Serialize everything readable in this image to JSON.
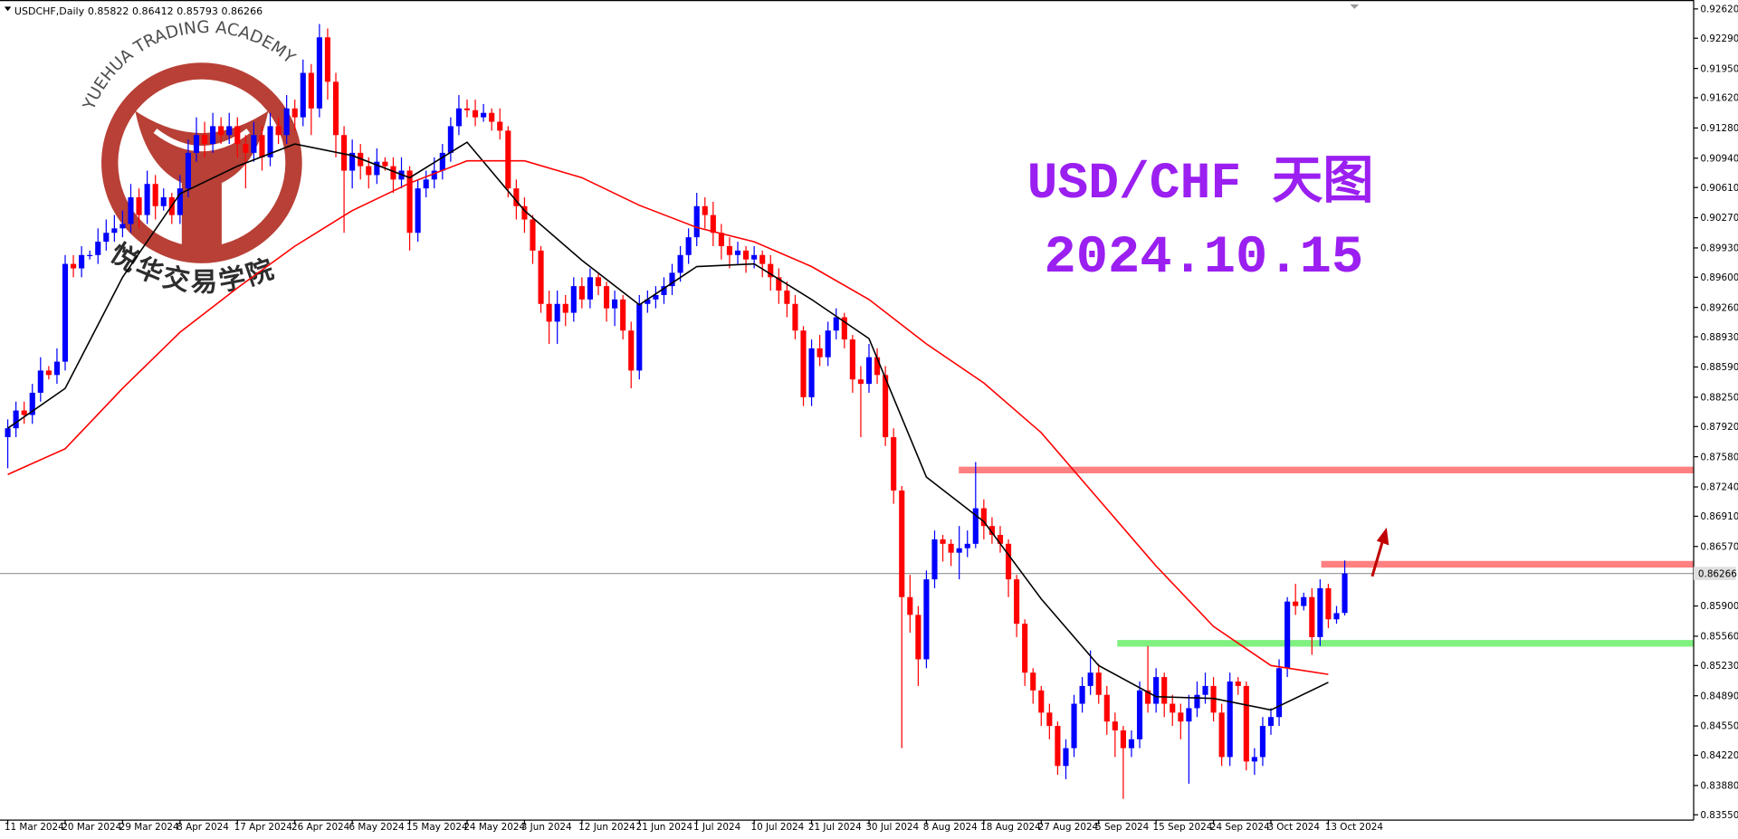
{
  "chart_data": {
    "type": "candlestick",
    "symbol": "USDCHF,Daily",
    "title": "USD/CHF 天图",
    "subtitle": "2024.10.15",
    "watermark": {
      "en": "YUEHUA TRADING ACADEMY",
      "cn": "悦华交易学院"
    },
    "up_color": "#0000ff",
    "down_color": "#ff0000",
    "price_line_color": "#a0a0a0",
    "ylim": [
      0.8349,
      0.9272
    ],
    "yticks": [
      {
        "value": 0.9262,
        "label": "0.92620"
      },
      {
        "value": 0.9229,
        "label": "0.92290"
      },
      {
        "value": 0.9195,
        "label": "0.91950"
      },
      {
        "value": 0.9162,
        "label": "0.91620"
      },
      {
        "value": 0.9128,
        "label": "0.91280"
      },
      {
        "value": 0.9094,
        "label": "0.90940"
      },
      {
        "value": 0.9061,
        "label": "0.90610"
      },
      {
        "value": 0.9027,
        "label": "0.90270"
      },
      {
        "value": 0.8993,
        "label": "0.89930"
      },
      {
        "value": 0.896,
        "label": "0.89600"
      },
      {
        "value": 0.8926,
        "label": "0.89260"
      },
      {
        "value": 0.8893,
        "label": "0.88930"
      },
      {
        "value": 0.8859,
        "label": "0.88590"
      },
      {
        "value": 0.8825,
        "label": "0.88250"
      },
      {
        "value": 0.8792,
        "label": "0.87920"
      },
      {
        "value": 0.8758,
        "label": "0.87580"
      },
      {
        "value": 0.8724,
        "label": "0.87240"
      },
      {
        "value": 0.8691,
        "label": "0.86910"
      },
      {
        "value": 0.8657,
        "label": "0.86570"
      },
      {
        "value": 0.859,
        "label": "0.85900"
      },
      {
        "value": 0.8556,
        "label": "0.85560"
      },
      {
        "value": 0.8523,
        "label": "0.85230"
      },
      {
        "value": 0.8489,
        "label": "0.84890"
      },
      {
        "value": 0.8455,
        "label": "0.84550"
      },
      {
        "value": 0.8422,
        "label": "0.84220"
      },
      {
        "value": 0.8388,
        "label": "0.83880"
      },
      {
        "value": 0.8355,
        "label": "0.83550"
      }
    ],
    "categories": [
      "11 Mar 2024",
      null,
      null,
      null,
      null,
      null,
      null,
      "20 Mar 2024",
      null,
      null,
      null,
      null,
      null,
      null,
      "29 Mar 2024",
      null,
      null,
      null,
      null,
      null,
      null,
      "8 Apr 2024",
      null,
      null,
      null,
      null,
      null,
      null,
      "17 Apr 2024",
      null,
      null,
      null,
      null,
      null,
      null,
      "26 Apr 2024",
      null,
      null,
      null,
      null,
      null,
      null,
      "6 May 2024",
      null,
      null,
      null,
      null,
      null,
      null,
      "15 May 2024",
      null,
      null,
      null,
      null,
      null,
      null,
      "24 May 2024",
      null,
      null,
      null,
      null,
      null,
      null,
      "3 Jun 2024",
      null,
      null,
      null,
      null,
      null,
      null,
      "12 Jun 2024",
      null,
      null,
      null,
      null,
      null,
      null,
      "21 Jun 2024",
      null,
      null,
      null,
      null,
      null,
      null,
      "1 Jul 2024",
      null,
      null,
      null,
      null,
      null,
      null,
      "10 Jul 2024",
      null,
      null,
      null,
      null,
      null,
      null,
      "21 Jul 2024",
      null,
      null,
      null,
      null,
      null,
      null,
      "30 Jul 2024",
      null,
      null,
      null,
      null,
      null,
      null,
      "8 Aug 2024",
      null,
      null,
      null,
      null,
      null,
      null,
      "18 Aug 2024",
      null,
      null,
      null,
      null,
      null,
      null,
      "27 Aug 2024",
      null,
      null,
      null,
      null,
      null,
      null,
      "5 Sep 2024",
      null,
      null,
      null,
      null,
      null,
      null,
      "15 Sep 2024",
      null,
      null,
      null,
      null,
      null,
      null,
      "24 Sep 2024",
      null,
      null,
      null,
      null,
      null,
      null,
      "3 Oct 2024",
      null,
      null,
      null,
      null,
      null,
      null,
      "13 Oct 2024",
      null,
      null
    ],
    "candles": [
      [
        0.878,
        0.88,
        0.8745,
        0.879
      ],
      [
        0.879,
        0.882,
        0.878,
        0.881
      ],
      [
        0.881,
        0.882,
        0.8795,
        0.8805
      ],
      [
        0.8805,
        0.884,
        0.8795,
        0.883
      ],
      [
        0.883,
        0.887,
        0.882,
        0.8855
      ],
      [
        0.8855,
        0.886,
        0.8845,
        0.885
      ],
      [
        0.885,
        0.888,
        0.884,
        0.8865
      ],
      [
        0.8865,
        0.8985,
        0.8855,
        0.8975
      ],
      [
        0.8975,
        0.8985,
        0.896,
        0.897
      ],
      [
        0.897,
        0.8995,
        0.896,
        0.8985
      ],
      [
        0.8985,
        0.899,
        0.898,
        0.8985
      ],
      [
        0.8985,
        0.9015,
        0.8975,
        0.9
      ],
      [
        0.9,
        0.9025,
        0.899,
        0.901
      ],
      [
        0.901,
        0.903,
        0.9,
        0.9015
      ],
      [
        0.9015,
        0.9035,
        0.9005,
        0.902
      ],
      [
        0.902,
        0.9065,
        0.901,
        0.905
      ],
      [
        0.905,
        0.906,
        0.9015,
        0.903
      ],
      [
        0.903,
        0.908,
        0.902,
        0.9065
      ],
      [
        0.9065,
        0.9075,
        0.9025,
        0.904
      ],
      [
        0.904,
        0.906,
        0.9035,
        0.905
      ],
      [
        0.905,
        0.9055,
        0.902,
        0.903
      ],
      [
        0.903,
        0.9075,
        0.902,
        0.906
      ],
      [
        0.906,
        0.9115,
        0.905,
        0.91
      ],
      [
        0.91,
        0.914,
        0.909,
        0.912
      ],
      [
        0.912,
        0.9135,
        0.9095,
        0.911
      ],
      [
        0.911,
        0.9145,
        0.91,
        0.913
      ],
      [
        0.913,
        0.914,
        0.911,
        0.912
      ],
      [
        0.912,
        0.9145,
        0.911,
        0.913
      ],
      [
        0.913,
        0.914,
        0.9095,
        0.911
      ],
      [
        0.911,
        0.912,
        0.906,
        0.91
      ],
      [
        0.91,
        0.9135,
        0.909,
        0.912
      ],
      [
        0.912,
        0.913,
        0.908,
        0.9095
      ],
      [
        0.9095,
        0.9145,
        0.9085,
        0.913
      ],
      [
        0.913,
        0.914,
        0.911,
        0.912
      ],
      [
        0.912,
        0.9165,
        0.911,
        0.915
      ],
      [
        0.915,
        0.916,
        0.9125,
        0.914
      ],
      [
        0.914,
        0.9205,
        0.913,
        0.919
      ],
      [
        0.919,
        0.92,
        0.912,
        0.915
      ],
      [
        0.915,
        0.9245,
        0.914,
        0.923
      ],
      [
        0.923,
        0.924,
        0.916,
        0.918
      ],
      [
        0.918,
        0.919,
        0.9095,
        0.912
      ],
      [
        0.912,
        0.913,
        0.901,
        0.908
      ],
      [
        0.908,
        0.9115,
        0.906,
        0.91
      ],
      [
        0.91,
        0.911,
        0.907,
        0.9085
      ],
      [
        0.9085,
        0.9095,
        0.906,
        0.9075
      ],
      [
        0.9075,
        0.9105,
        0.9065,
        0.909
      ],
      [
        0.909,
        0.9095,
        0.908,
        0.9085
      ],
      [
        0.9085,
        0.9095,
        0.9055,
        0.907
      ],
      [
        0.907,
        0.9095,
        0.906,
        0.908
      ],
      [
        0.908,
        0.9085,
        0.899,
        0.901
      ],
      [
        0.901,
        0.907,
        0.9,
        0.906
      ],
      [
        0.906,
        0.908,
        0.905,
        0.907
      ],
      [
        0.907,
        0.9095,
        0.906,
        0.908
      ],
      [
        0.908,
        0.911,
        0.907,
        0.91
      ],
      [
        0.91,
        0.914,
        0.909,
        0.913
      ],
      [
        0.913,
        0.9165,
        0.912,
        0.915
      ],
      [
        0.915,
        0.916,
        0.914,
        0.9148
      ],
      [
        0.9148,
        0.916,
        0.913,
        0.914
      ],
      [
        0.914,
        0.9155,
        0.9135,
        0.9145
      ],
      [
        0.9145,
        0.915,
        0.9125,
        0.9135
      ],
      [
        0.9135,
        0.915,
        0.9115,
        0.9125
      ],
      [
        0.9125,
        0.913,
        0.905,
        0.906
      ],
      [
        0.906,
        0.907,
        0.9025,
        0.904
      ],
      [
        0.904,
        0.905,
        0.901,
        0.9025
      ],
      [
        0.9025,
        0.903,
        0.8975,
        0.899
      ],
      [
        0.899,
        0.8995,
        0.892,
        0.893
      ],
      [
        0.893,
        0.8945,
        0.8885,
        0.891
      ],
      [
        0.891,
        0.8945,
        0.8885,
        0.893
      ],
      [
        0.893,
        0.894,
        0.8905,
        0.892
      ],
      [
        0.892,
        0.896,
        0.891,
        0.895
      ],
      [
        0.895,
        0.896,
        0.8925,
        0.8935
      ],
      [
        0.8935,
        0.897,
        0.8925,
        0.896
      ],
      [
        0.896,
        0.8965,
        0.894,
        0.895
      ],
      [
        0.895,
        0.8955,
        0.891,
        0.8925
      ],
      [
        0.8925,
        0.8945,
        0.8905,
        0.8935
      ],
      [
        0.8935,
        0.894,
        0.889,
        0.89
      ],
      [
        0.89,
        0.891,
        0.8835,
        0.8855
      ],
      [
        0.8855,
        0.894,
        0.8845,
        0.893
      ],
      [
        0.893,
        0.8945,
        0.892,
        0.8935
      ],
      [
        0.8935,
        0.895,
        0.8925,
        0.894
      ],
      [
        0.894,
        0.896,
        0.893,
        0.895
      ],
      [
        0.895,
        0.8975,
        0.894,
        0.8965
      ],
      [
        0.8965,
        0.8995,
        0.8955,
        0.8985
      ],
      [
        0.8985,
        0.9015,
        0.8975,
        0.9005
      ],
      [
        0.9005,
        0.9055,
        0.8995,
        0.904
      ],
      [
        0.904,
        0.905,
        0.9015,
        0.903
      ],
      [
        0.903,
        0.9045,
        0.8995,
        0.901
      ],
      [
        0.901,
        0.902,
        0.898,
        0.8995
      ],
      [
        0.8995,
        0.9005,
        0.897,
        0.8985
      ],
      [
        0.8985,
        0.9,
        0.8975,
        0.899
      ],
      [
        0.899,
        0.8995,
        0.8965,
        0.898
      ],
      [
        0.898,
        0.8995,
        0.897,
        0.8985
      ],
      [
        0.8985,
        0.899,
        0.896,
        0.8975
      ],
      [
        0.8975,
        0.8985,
        0.8945,
        0.896
      ],
      [
        0.896,
        0.897,
        0.893,
        0.8945
      ],
      [
        0.8945,
        0.8955,
        0.8915,
        0.893
      ],
      [
        0.893,
        0.894,
        0.889,
        0.89
      ],
      [
        0.89,
        0.8905,
        0.8815,
        0.8825
      ],
      [
        0.8825,
        0.889,
        0.8815,
        0.888
      ],
      [
        0.888,
        0.8895,
        0.886,
        0.887
      ],
      [
        0.887,
        0.891,
        0.886,
        0.89
      ],
      [
        0.89,
        0.8925,
        0.889,
        0.8915
      ],
      [
        0.8915,
        0.892,
        0.888,
        0.889
      ],
      [
        0.889,
        0.8895,
        0.883,
        0.8845
      ],
      [
        0.8845,
        0.886,
        0.878,
        0.884
      ],
      [
        0.884,
        0.8885,
        0.883,
        0.887
      ],
      [
        0.887,
        0.888,
        0.884,
        0.885
      ],
      [
        0.885,
        0.886,
        0.877,
        0.878
      ],
      [
        0.878,
        0.879,
        0.8705,
        0.872
      ],
      [
        0.872,
        0.8725,
        0.843,
        0.86
      ],
      [
        0.86,
        0.8625,
        0.856,
        0.858
      ],
      [
        0.858,
        0.859,
        0.85,
        0.853
      ],
      [
        0.853,
        0.863,
        0.852,
        0.862
      ],
      [
        0.862,
        0.8675,
        0.861,
        0.8665
      ],
      [
        0.8665,
        0.867,
        0.864,
        0.866
      ],
      [
        0.866,
        0.8665,
        0.8635,
        0.865
      ],
      [
        0.865,
        0.868,
        0.862,
        0.8655
      ],
      [
        0.8655,
        0.8675,
        0.8645,
        0.866
      ],
      [
        0.866,
        0.8752,
        0.8655,
        0.87
      ],
      [
        0.87,
        0.871,
        0.8665,
        0.868
      ],
      [
        0.868,
        0.869,
        0.866,
        0.867
      ],
      [
        0.867,
        0.868,
        0.865,
        0.866
      ],
      [
        0.866,
        0.8665,
        0.86,
        0.862
      ],
      [
        0.862,
        0.8625,
        0.8555,
        0.857
      ],
      [
        0.857,
        0.8575,
        0.85,
        0.8515
      ],
      [
        0.8515,
        0.852,
        0.848,
        0.8495
      ],
      [
        0.8495,
        0.85,
        0.8455,
        0.847
      ],
      [
        0.847,
        0.848,
        0.844,
        0.8455
      ],
      [
        0.8455,
        0.846,
        0.84,
        0.841
      ],
      [
        0.841,
        0.844,
        0.8395,
        0.843
      ],
      [
        0.843,
        0.849,
        0.842,
        0.848
      ],
      [
        0.848,
        0.851,
        0.847,
        0.85
      ],
      [
        0.85,
        0.854,
        0.849,
        0.8515
      ],
      [
        0.8515,
        0.8525,
        0.848,
        0.849
      ],
      [
        0.849,
        0.85,
        0.8445,
        0.846
      ],
      [
        0.846,
        0.847,
        0.842,
        0.845
      ],
      [
        0.845,
        0.8455,
        0.8373,
        0.843
      ],
      [
        0.843,
        0.845,
        0.842,
        0.844
      ],
      [
        0.844,
        0.8505,
        0.843,
        0.8495
      ],
      [
        0.8495,
        0.8545,
        0.847,
        0.848
      ],
      [
        0.848,
        0.852,
        0.847,
        0.851
      ],
      [
        0.851,
        0.8515,
        0.8465,
        0.848
      ],
      [
        0.848,
        0.849,
        0.8455,
        0.847
      ],
      [
        0.847,
        0.848,
        0.844,
        0.846
      ],
      [
        0.846,
        0.849,
        0.839,
        0.8475
      ],
      [
        0.8475,
        0.8505,
        0.8465,
        0.849
      ],
      [
        0.849,
        0.8515,
        0.848,
        0.85
      ],
      [
        0.85,
        0.851,
        0.846,
        0.847
      ],
      [
        0.847,
        0.848,
        0.841,
        0.842
      ],
      [
        0.842,
        0.8515,
        0.841,
        0.8505
      ],
      [
        0.8505,
        0.851,
        0.849,
        0.85
      ],
      [
        0.85,
        0.8505,
        0.8405,
        0.8415
      ],
      [
        0.8415,
        0.843,
        0.84,
        0.842
      ],
      [
        0.842,
        0.8465,
        0.841,
        0.8455
      ],
      [
        0.8455,
        0.8475,
        0.8445,
        0.8465
      ],
      [
        0.8465,
        0.853,
        0.8455,
        0.852
      ],
      [
        0.852,
        0.86,
        0.851,
        0.8595
      ],
      [
        0.8595,
        0.8615,
        0.858,
        0.859
      ],
      [
        0.859,
        0.8605,
        0.8585,
        0.86
      ],
      [
        0.86,
        0.861,
        0.8535,
        0.8555
      ],
      [
        0.8555,
        0.862,
        0.8545,
        0.861
      ],
      [
        0.861,
        0.8615,
        0.8565,
        0.8575
      ],
      [
        0.8575,
        0.859,
        0.857,
        0.8582
      ],
      [
        0.85822,
        0.86412,
        0.85793,
        0.86266
      ]
    ],
    "lines": [
      {
        "color": "#000000",
        "x": [
          "11 Mar 2024",
          "20 Mar 2024",
          "29 Mar 2024",
          "8 Apr 2024",
          "17 Apr 2024",
          "26 Apr 2024",
          "6 May 2024",
          "15 May 2024",
          "24 May 2024",
          "3 Jun 2024",
          "12 Jun 2024",
          "21 Jun 2024",
          "1 Jul 2024",
          "10 Jul 2024",
          "21 Jul 2024",
          "30 Jul 2024",
          "8 Aug 2024",
          "18 Aug 2024",
          "27 Aug 2024",
          "5 Sep 2024",
          "15 Sep 2024",
          "24 Sep 2024",
          "3 Oct 2024",
          "13 Oct 2024"
        ],
        "values": [
          0.879,
          0.8835,
          0.896,
          0.9054,
          0.9085,
          0.911,
          0.9097,
          0.9072,
          0.9112,
          0.9035,
          0.8979,
          0.8929,
          0.8972,
          0.8975,
          0.8935,
          0.8891,
          0.8735,
          0.8685,
          0.8598,
          0.8523,
          0.8488,
          0.8486,
          0.8473,
          0.8504
        ]
      },
      {
        "color": "#ff0000",
        "x": [
          "11 Mar 2024",
          "20 Mar 2024",
          "29 Mar 2024",
          "8 Apr 2024",
          "17 Apr 2024",
          "26 Apr 2024",
          "6 May 2024",
          "15 May 2024",
          "24 May 2024",
          "3 Jun 2024",
          "12 Jun 2024",
          "21 Jun 2024",
          "1 Jul 2024",
          "10 Jul 2024",
          "21 Jul 2024",
          "30 Jul 2024",
          "8 Aug 2024",
          "18 Aug 2024",
          "27 Aug 2024",
          "5 Sep 2024",
          "15 Sep 2024",
          "24 Sep 2024",
          "3 Oct 2024",
          "13 Oct 2024"
        ],
        "values": [
          0.8738,
          0.8767,
          0.8835,
          0.8898,
          0.8948,
          0.8995,
          0.9035,
          0.9066,
          0.9091,
          0.9091,
          0.9072,
          0.9041,
          0.9016,
          0.9,
          0.8972,
          0.8935,
          0.8885,
          0.8841,
          0.8785,
          0.871,
          0.8635,
          0.8567,
          0.8523,
          0.8513
        ]
      }
    ],
    "levels": [
      {
        "value": 0.8743,
        "color": "#ff8080"
      },
      {
        "value": 0.8637,
        "color": "#ff8080"
      },
      {
        "value": 0.8548,
        "color": "#80f080"
      }
    ]
  }
}
